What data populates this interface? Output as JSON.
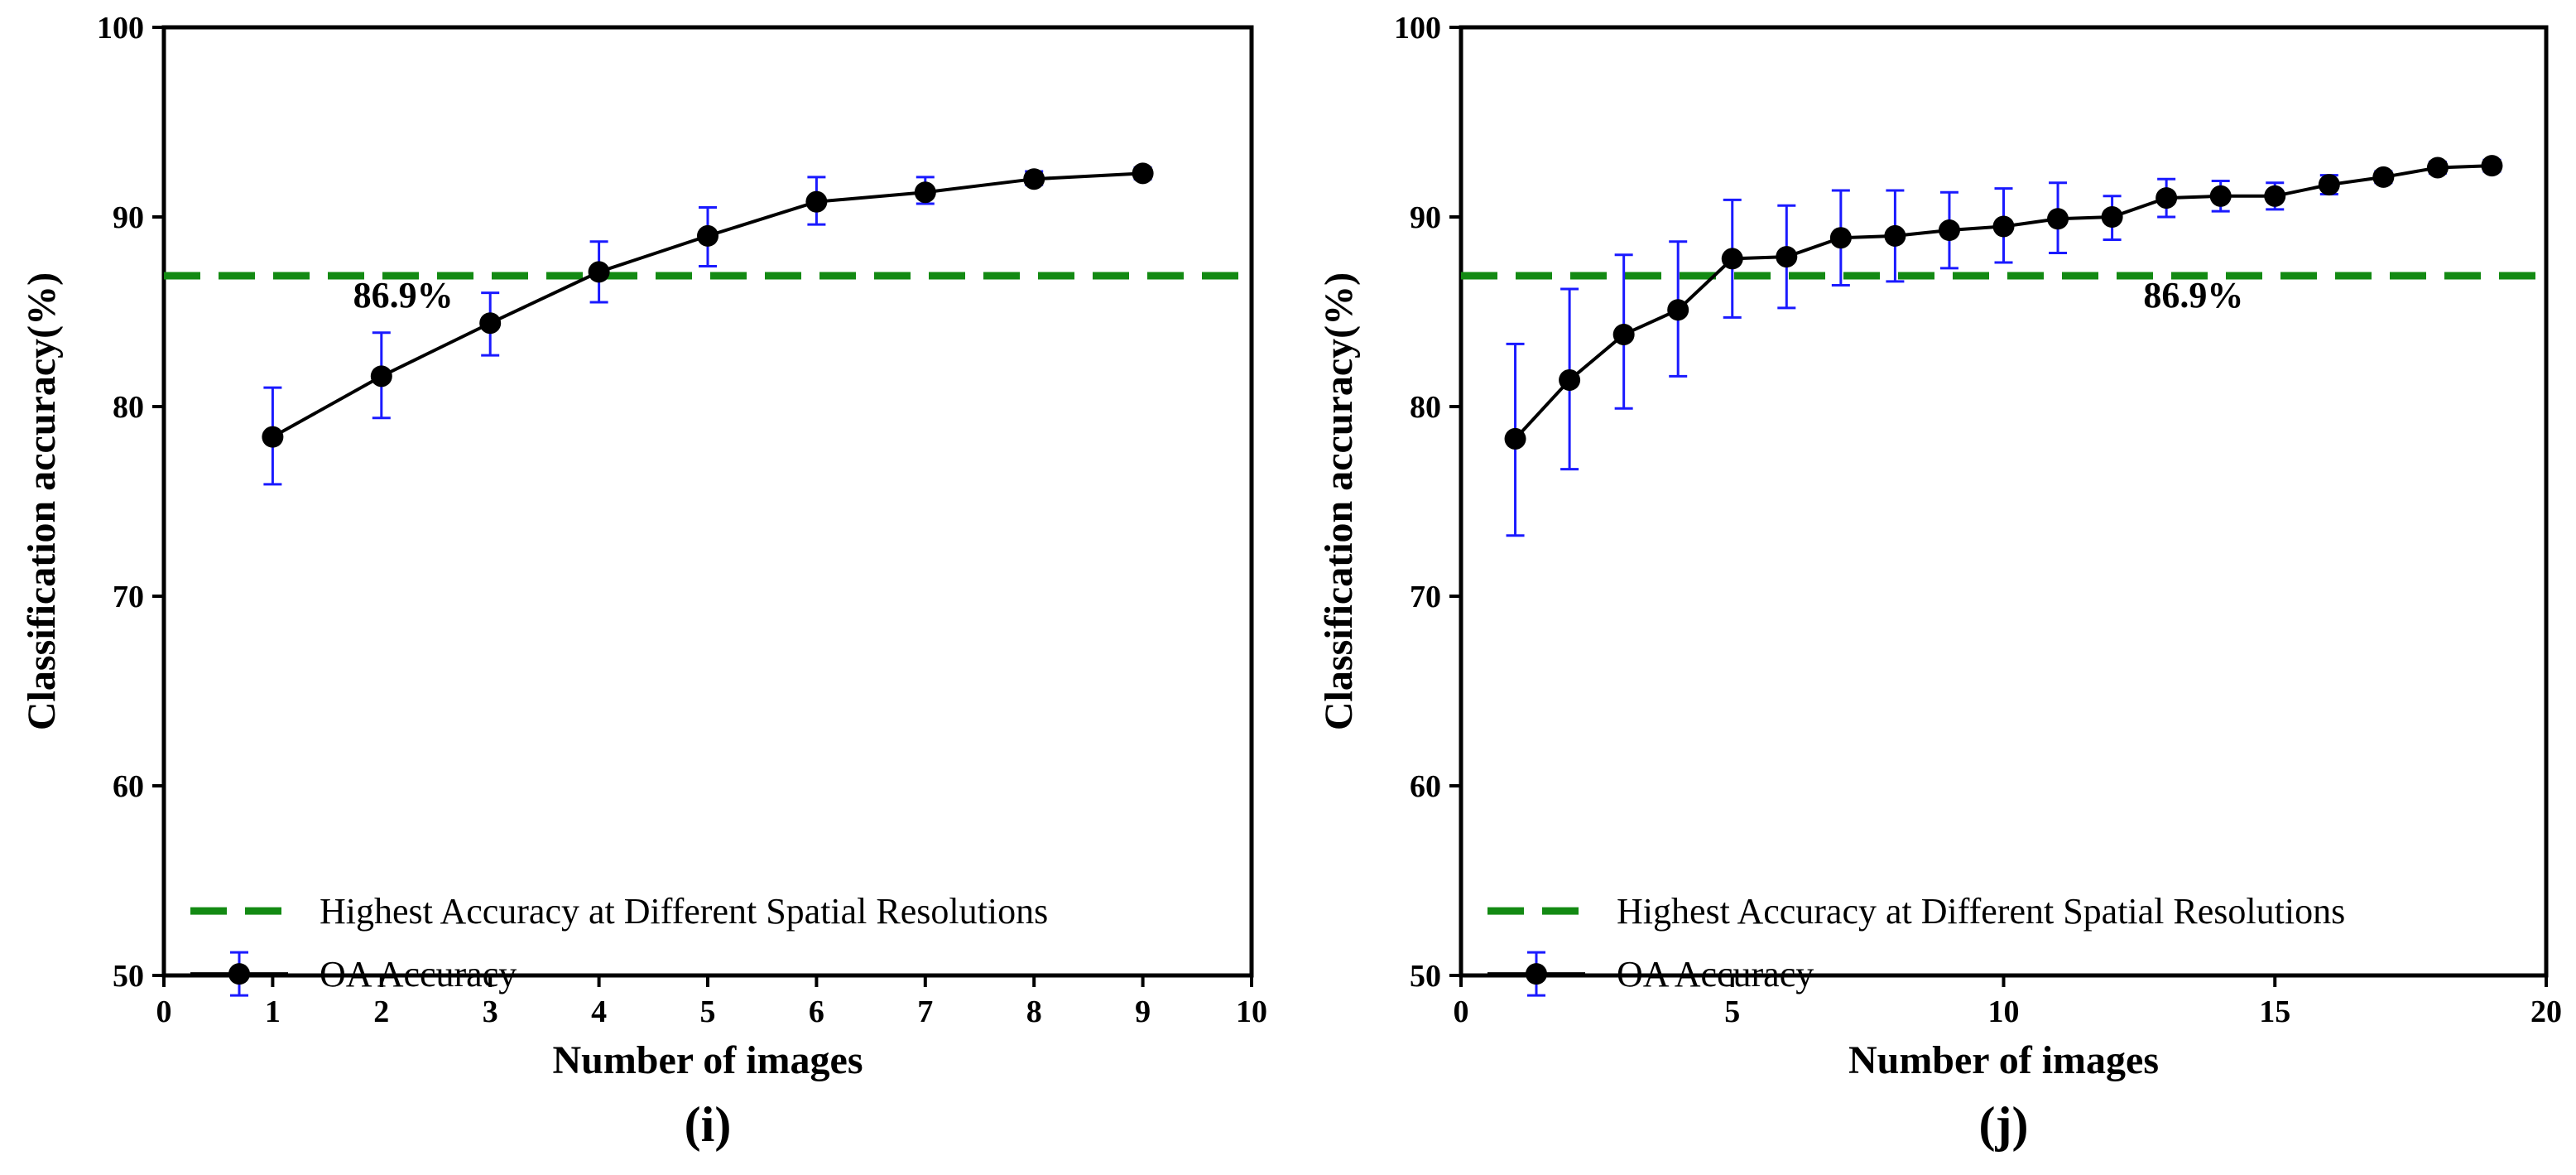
{
  "colors": {
    "series": "#000000",
    "error_bar": "#1a1aff",
    "reference": "#138a13"
  },
  "chart_data": [
    {
      "type": "line",
      "panel_label": "(i)",
      "xlabel": "Number of images",
      "ylabel": "Classification accuracy(%)",
      "xlim": [
        0,
        10
      ],
      "ylim": [
        50,
        100
      ],
      "xticks": [
        0,
        1,
        2,
        3,
        4,
        5,
        6,
        7,
        8,
        9,
        10
      ],
      "yticks": [
        50,
        60,
        70,
        80,
        90,
        100
      ],
      "reference_line": {
        "value": 86.9,
        "label": "86.9%",
        "label_x": 2.2
      },
      "legend": {
        "position": "lower-left",
        "reference_entry": "Highest Accuracy at Different Spatial Resolutions",
        "series_entry": "OA Accuracy"
      },
      "series": [
        {
          "name": "OA Accuracy",
          "x": [
            1,
            2,
            3,
            4,
            5,
            6,
            7,
            8,
            9
          ],
          "y": [
            78.4,
            81.6,
            84.4,
            87.1,
            89.0,
            90.8,
            91.3,
            92.0,
            92.3
          ],
          "err_low": [
            75.9,
            79.4,
            82.7,
            85.5,
            87.4,
            89.6,
            90.7,
            91.7,
            92.0
          ],
          "err_high": [
            81.0,
            83.9,
            86.0,
            88.7,
            90.5,
            92.1,
            92.1,
            92.4,
            92.6
          ]
        }
      ]
    },
    {
      "type": "line",
      "panel_label": "(j)",
      "xlabel": "Number of images",
      "ylabel": "Classification accuracy(%)",
      "xlim": [
        0,
        20
      ],
      "ylim": [
        50,
        100
      ],
      "xticks": [
        0,
        5,
        10,
        15,
        20
      ],
      "yticks": [
        50,
        60,
        70,
        80,
        90,
        100
      ],
      "reference_line": {
        "value": 86.9,
        "label": "86.9%",
        "label_x": 13.5
      },
      "legend": {
        "position": "lower-left",
        "reference_entry": "Highest Accuracy at Different Spatial Resolutions",
        "series_entry": "OA Accuracy"
      },
      "series": [
        {
          "name": "OA Accuracy",
          "x": [
            1,
            2,
            3,
            4,
            5,
            6,
            7,
            8,
            9,
            10,
            11,
            12,
            13,
            14,
            15,
            16,
            17,
            18,
            19
          ],
          "y": [
            78.3,
            81.4,
            83.8,
            85.1,
            87.8,
            87.9,
            88.9,
            89.0,
            89.3,
            89.5,
            89.9,
            90.0,
            91.0,
            91.1,
            91.1,
            91.7,
            92.1,
            92.6,
            92.7
          ],
          "err_low": [
            73.2,
            76.7,
            79.9,
            81.6,
            84.7,
            85.2,
            86.4,
            86.6,
            87.3,
            87.6,
            88.1,
            88.8,
            90.0,
            90.3,
            90.4,
            91.2,
            91.8,
            92.3,
            92.4
          ],
          "err_high": [
            83.3,
            86.2,
            88.0,
            88.7,
            90.9,
            90.6,
            91.4,
            91.4,
            91.3,
            91.5,
            91.8,
            91.1,
            92.0,
            91.9,
            91.8,
            92.2,
            92.4,
            92.9,
            93.0
          ]
        }
      ]
    }
  ]
}
